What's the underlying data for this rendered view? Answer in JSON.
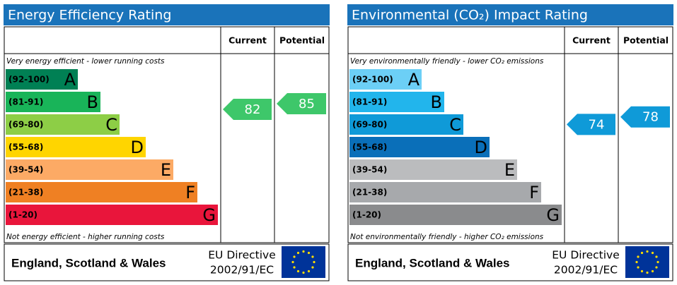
{
  "panels": [
    {
      "title": "Energy Efficiency Rating",
      "columns": [
        "Current",
        "Potential"
      ],
      "top_note": "Very energy efficient - lower running costs",
      "bottom_note": "Not energy efficient - higher running costs",
      "bands": [
        {
          "range": "(92-100)",
          "letter": "A",
          "color": "#008054"
        },
        {
          "range": "(81-91)",
          "letter": "B",
          "color": "#19b459"
        },
        {
          "range": "(69-80)",
          "letter": "C",
          "color": "#8dce46"
        },
        {
          "range": "(55-68)",
          "letter": "D",
          "color": "#ffd500"
        },
        {
          "range": "(39-54)",
          "letter": "E",
          "color": "#fcaa65"
        },
        {
          "range": "(21-38)",
          "letter": "F",
          "color": "#ef8023"
        },
        {
          "range": "(1-20)",
          "letter": "G",
          "color": "#e9153b"
        }
      ],
      "current": 82,
      "potential": 85,
      "arrow_color": "#3ec76a",
      "footer": {
        "region": "England, Scotland & Wales",
        "directive": [
          "EU Directive",
          "2002/91/EC"
        ]
      }
    },
    {
      "title": "Environmental (CO₂) Impact Rating",
      "columns": [
        "Current",
        "Potential"
      ],
      "top_note": "Very environmentally friendly - lower CO₂ emissions",
      "bottom_note": "Not environmentally friendly - higher CO₂ emissions",
      "bands": [
        {
          "range": "(92-100)",
          "letter": "A",
          "color": "#6ccff6"
        },
        {
          "range": "(81-91)",
          "letter": "B",
          "color": "#22b5ec"
        },
        {
          "range": "(69-80)",
          "letter": "C",
          "color": "#0f9ad8"
        },
        {
          "range": "(55-68)",
          "letter": "D",
          "color": "#0a6fb9"
        },
        {
          "range": "(39-54)",
          "letter": "E",
          "color": "#bbbcbe"
        },
        {
          "range": "(21-38)",
          "letter": "F",
          "color": "#a7a9ac"
        },
        {
          "range": "(1-20)",
          "letter": "G",
          "color": "#8a8b8d"
        }
      ],
      "current": 74,
      "potential": 78,
      "arrow_color": "#0f9ad8",
      "footer": {
        "region": "England, Scotland & Wales",
        "directive": [
          "EU Directive",
          "2002/91/EC"
        ]
      }
    }
  ]
}
